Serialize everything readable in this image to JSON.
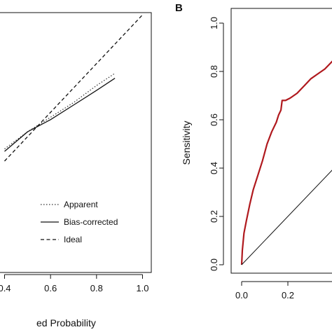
{
  "chart_data": [
    {
      "type": "line",
      "panel": "A",
      "title": "",
      "xlabel": "ed Probability",
      "ylabel": "",
      "x_ticks": [
        "0.4",
        "0.6",
        "0.8",
        "1.0"
      ],
      "xlim": [
        0.4,
        1.0
      ],
      "ylim": [
        0.3,
        1.0
      ],
      "legend_position": "bottom-right",
      "series": [
        {
          "name": "Apparent",
          "style": "dotted",
          "color": "#333333",
          "x": [
            0.4,
            0.5,
            0.6,
            0.7,
            0.8,
            0.88
          ],
          "y": [
            0.45,
            0.52,
            0.58,
            0.64,
            0.71,
            0.76
          ]
        },
        {
          "name": "Bias-corrected",
          "style": "solid",
          "color": "#111111",
          "x": [
            0.4,
            0.5,
            0.6,
            0.7,
            0.8,
            0.88
          ],
          "y": [
            0.44,
            0.52,
            0.57,
            0.63,
            0.69,
            0.74
          ]
        },
        {
          "name": "Ideal",
          "style": "dashed",
          "color": "#111111",
          "x": [
            0.4,
            1.0
          ],
          "y": [
            0.4,
            1.0
          ]
        }
      ]
    },
    {
      "type": "line",
      "panel": "B",
      "title": "",
      "xlabel": "",
      "ylabel": "Sensitivity",
      "x_ticks": [
        "0.0",
        "0.2"
      ],
      "y_ticks": [
        "0.0",
        "0.2",
        "0.4",
        "0.6",
        "0.8",
        "1.0"
      ],
      "xlim": [
        0.0,
        0.4
      ],
      "ylim": [
        0.0,
        1.0
      ],
      "series": [
        {
          "name": "",
          "style": "solid",
          "color": "#b0191e",
          "x": [
            0.0,
            0.003,
            0.01,
            0.02,
            0.035,
            0.05,
            0.07,
            0.09,
            0.11,
            0.13,
            0.15,
            0.16,
            0.17,
            0.175,
            0.19,
            0.21,
            0.24,
            0.27,
            0.3,
            0.33,
            0.36,
            0.4
          ],
          "y": [
            0.0,
            0.06,
            0.13,
            0.18,
            0.25,
            0.31,
            0.37,
            0.43,
            0.5,
            0.55,
            0.59,
            0.62,
            0.64,
            0.68,
            0.68,
            0.69,
            0.71,
            0.74,
            0.77,
            0.79,
            0.81,
            0.85
          ]
        },
        {
          "name": "",
          "style": "solid",
          "color": "#111111",
          "x": [
            0.0,
            0.4
          ],
          "y": [
            0.0,
            0.4
          ]
        }
      ]
    }
  ],
  "panels": {
    "b_label": "B"
  }
}
